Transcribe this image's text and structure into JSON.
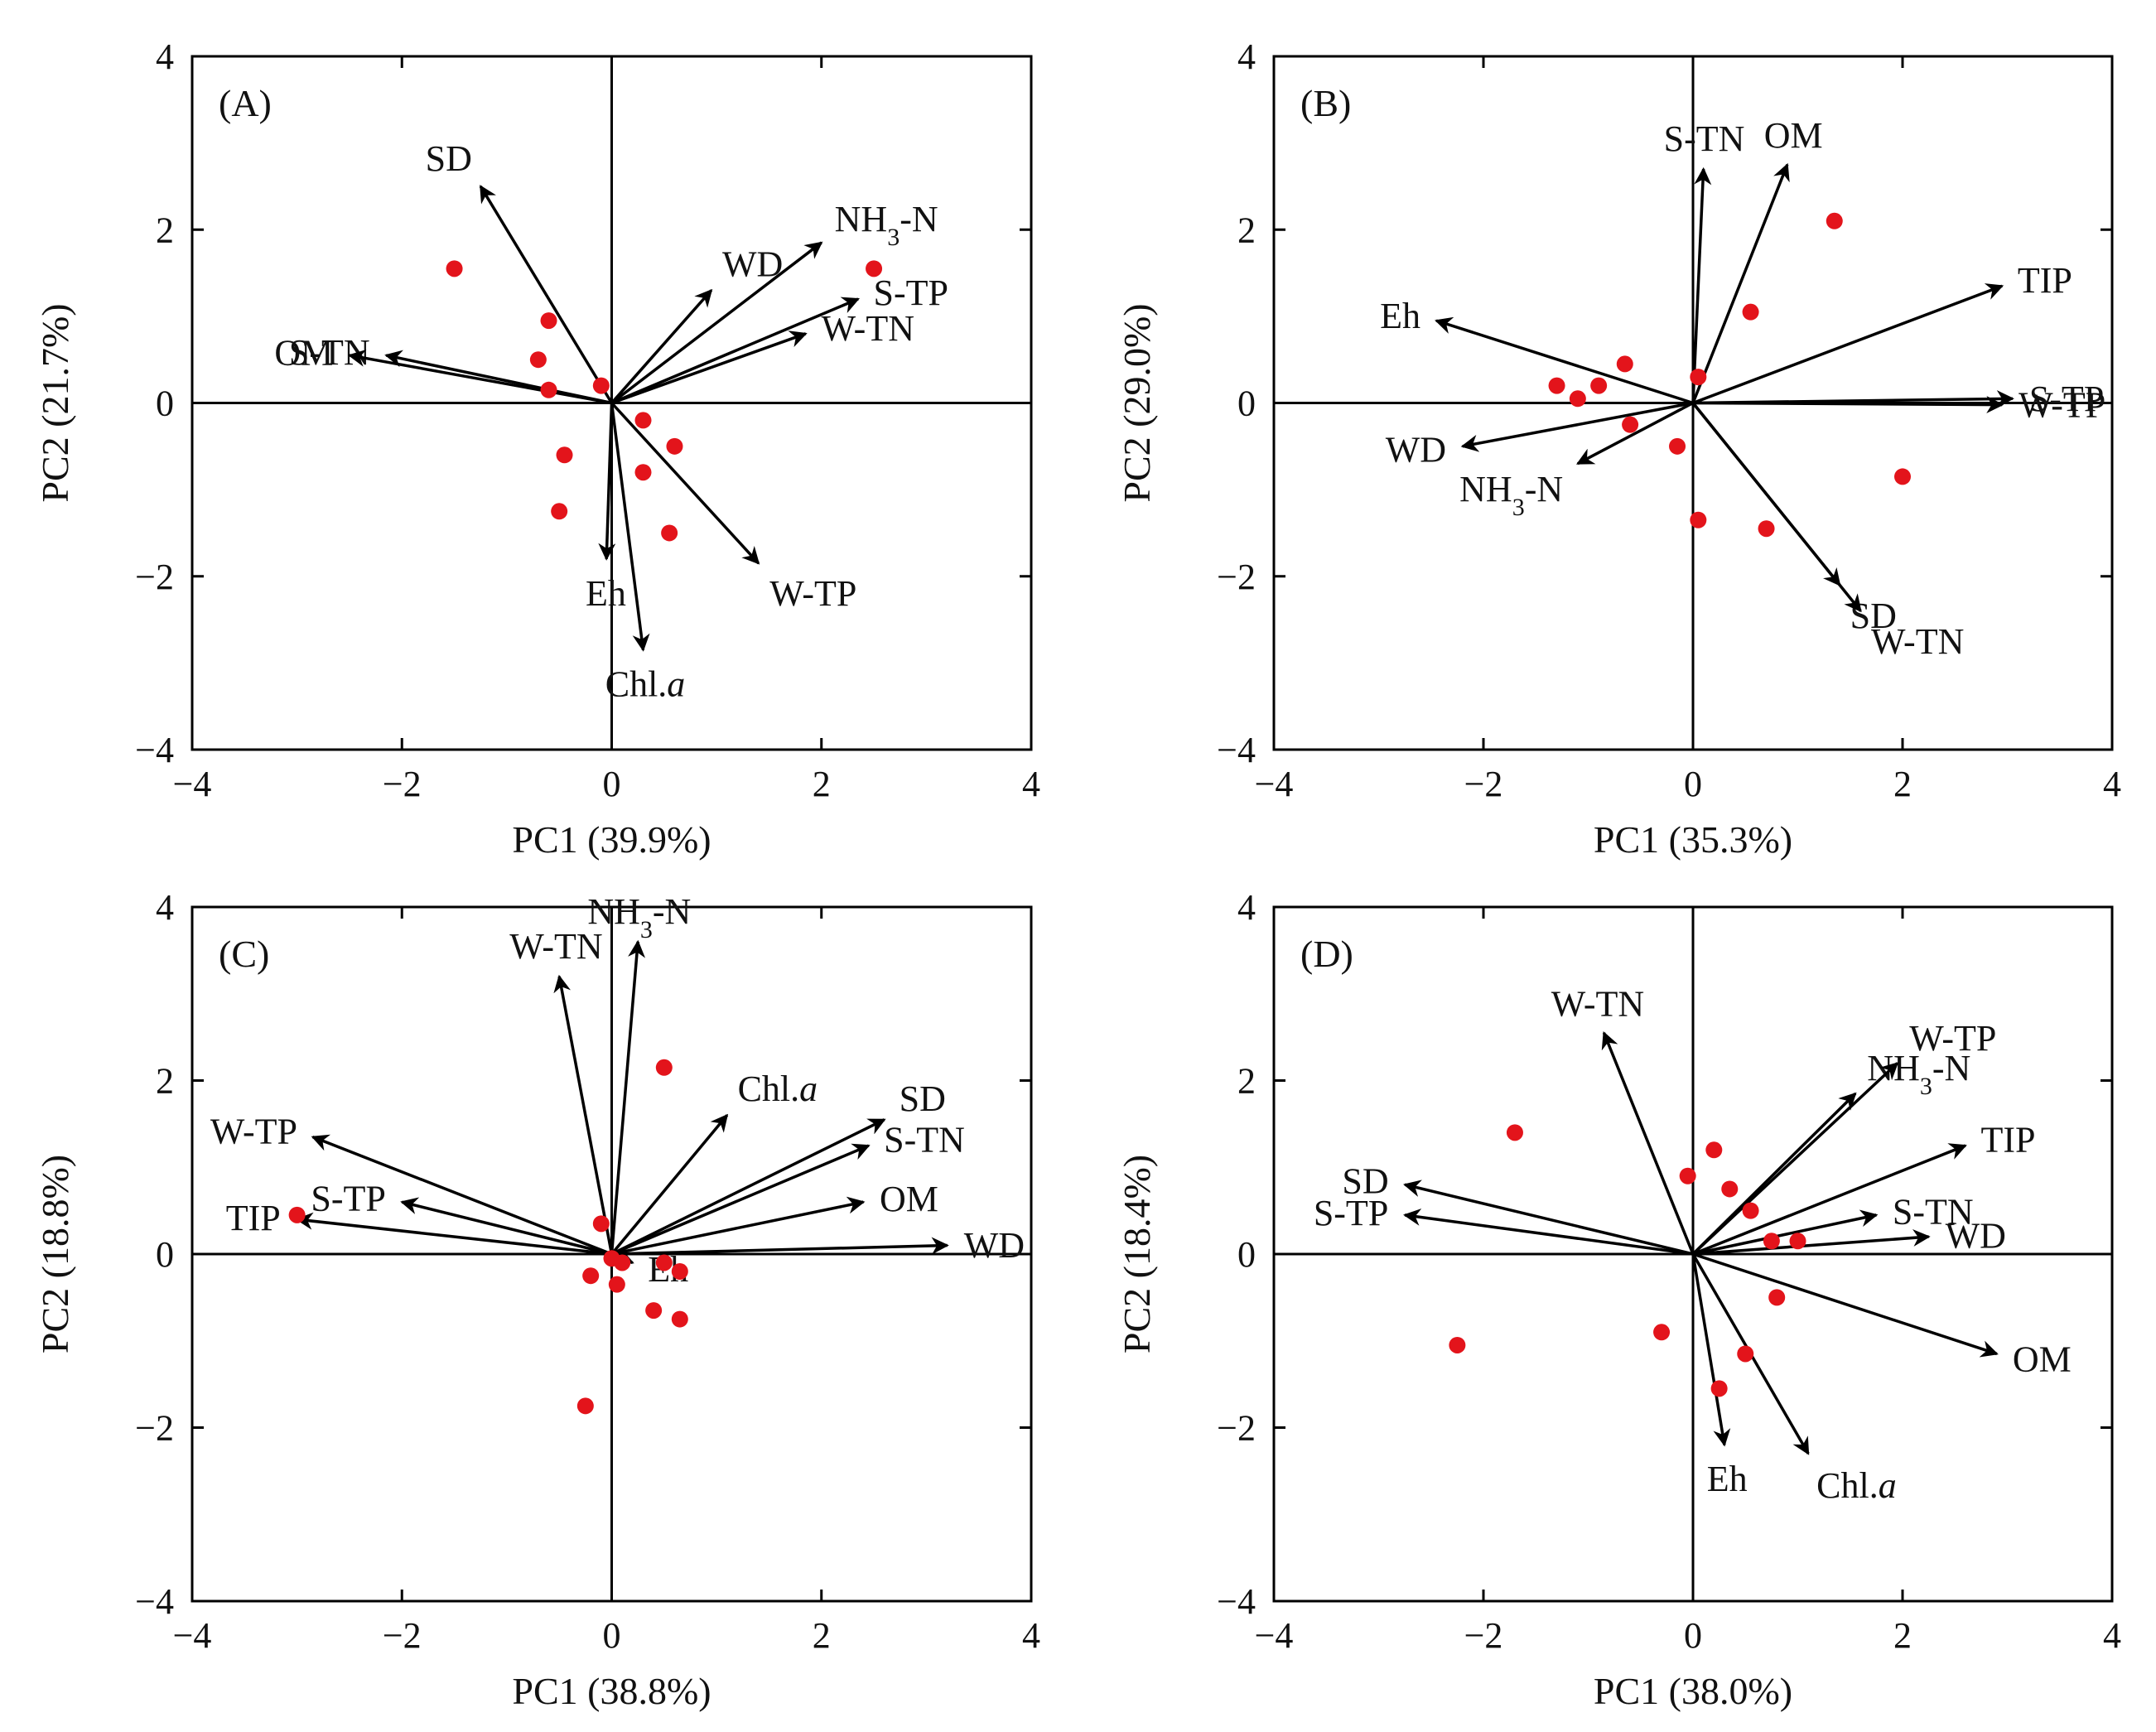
{
  "colors": {
    "points": "#e3141b",
    "arrows": "#000000",
    "background": "#ffffff"
  },
  "chart_data": [
    {
      "type": "scatter",
      "panel": "(A)",
      "xlabel": "PC1 (39.9%)",
      "ylabel": "PC2 (21.7%)",
      "xlim": [
        -4,
        4
      ],
      "ylim": [
        -4,
        4
      ],
      "xticks": [
        "−4",
        "−2",
        "0",
        "2",
        "4"
      ],
      "yticks": [
        "−4",
        "−2",
        "0",
        "2",
        "4"
      ],
      "vectors": [
        {
          "label": "SD",
          "x": -1.25,
          "y": 2.5
        },
        {
          "label": "NH3-N",
          "x": 2.0,
          "y": 1.85
        },
        {
          "label": "WD",
          "x": 0.95,
          "y": 1.3
        },
        {
          "label": "S-TP",
          "x": 2.35,
          "y": 1.2
        },
        {
          "label": "W-TN",
          "x": 1.85,
          "y": 0.8
        },
        {
          "label": "S-TN",
          "x": -2.15,
          "y": 0.55
        },
        {
          "label": "OM",
          "x": -2.5,
          "y": 0.55
        },
        {
          "label": "Eh",
          "x": -0.05,
          "y": -1.8
        },
        {
          "label": "Chl.a",
          "x": 0.3,
          "y": -2.85
        },
        {
          "label": "W-TP",
          "x": 1.4,
          "y": -1.85
        }
      ],
      "points": [
        {
          "x": -1.5,
          "y": 1.55
        },
        {
          "x": -0.6,
          "y": 0.95
        },
        {
          "x": -0.7,
          "y": 0.5
        },
        {
          "x": -0.6,
          "y": 0.15
        },
        {
          "x": -0.1,
          "y": 0.2
        },
        {
          "x": 2.5,
          "y": 1.55
        },
        {
          "x": 0.3,
          "y": -0.2
        },
        {
          "x": 0.6,
          "y": -0.5
        },
        {
          "x": -0.45,
          "y": -0.6
        },
        {
          "x": 0.3,
          "y": -0.8
        },
        {
          "x": -0.5,
          "y": -1.25
        },
        {
          "x": 0.55,
          "y": -1.5
        }
      ]
    },
    {
      "type": "scatter",
      "panel": "(B)",
      "xlabel": "PC1 (35.3%)",
      "ylabel": "PC2 (29.0%)",
      "xlim": [
        -4,
        4
      ],
      "ylim": [
        -4,
        4
      ],
      "xticks": [
        "−4",
        "−2",
        "0",
        "2",
        "4"
      ],
      "yticks": [
        "−4",
        "−2",
        "0",
        "2",
        "4"
      ],
      "vectors": [
        {
          "label": "S-TN",
          "x": 0.1,
          "y": 2.7
        },
        {
          "label": "OM",
          "x": 0.9,
          "y": 2.75
        },
        {
          "label": "TIP",
          "x": 2.95,
          "y": 1.35
        },
        {
          "label": "Eh",
          "x": -2.45,
          "y": 0.95
        },
        {
          "label": "S-TP",
          "x": 3.05,
          "y": 0.05
        },
        {
          "label": "W-TP",
          "x": 2.95,
          "y": -0.02
        },
        {
          "label": "WD",
          "x": -2.2,
          "y": -0.5
        },
        {
          "label": "NH3-N",
          "x": -1.1,
          "y": -0.7
        },
        {
          "label": "SD",
          "x": 1.4,
          "y": -2.1
        },
        {
          "label": "W-TN",
          "x": 1.6,
          "y": -2.4
        }
      ],
      "points": [
        {
          "x": 1.35,
          "y": 2.1
        },
        {
          "x": 0.55,
          "y": 1.05
        },
        {
          "x": -0.65,
          "y": 0.45
        },
        {
          "x": 0.05,
          "y": 0.3
        },
        {
          "x": -1.3,
          "y": 0.2
        },
        {
          "x": -0.9,
          "y": 0.2
        },
        {
          "x": -1.1,
          "y": 0.05
        },
        {
          "x": -0.6,
          "y": -0.25
        },
        {
          "x": -0.15,
          "y": -0.5
        },
        {
          "x": 2.0,
          "y": -0.85
        },
        {
          "x": 0.05,
          "y": -1.35
        },
        {
          "x": 0.7,
          "y": -1.45
        }
      ]
    },
    {
      "type": "scatter",
      "panel": "(C)",
      "xlabel": "PC1 (38.8%)",
      "ylabel": "PC2 (18.8%)",
      "xlim": [
        -4,
        4
      ],
      "ylim": [
        -4,
        4
      ],
      "xticks": [
        "−4",
        "−2",
        "0",
        "2",
        "4"
      ],
      "yticks": [
        "−4",
        "−2",
        "0",
        "2",
        "4"
      ],
      "vectors": [
        {
          "label": "W-TN",
          "x": -0.5,
          "y": 3.2
        },
        {
          "label": "NH3-N",
          "x": 0.25,
          "y": 3.6
        },
        {
          "label": "Chl.a",
          "x": 1.1,
          "y": 1.6
        },
        {
          "label": "SD",
          "x": 2.6,
          "y": 1.55
        },
        {
          "label": "S-TN",
          "x": 2.45,
          "y": 1.25
        },
        {
          "label": "OM",
          "x": 2.4,
          "y": 0.6
        },
        {
          "label": "WD",
          "x": 3.2,
          "y": 0.1
        },
        {
          "label": "W-TP",
          "x": -2.85,
          "y": 1.35
        },
        {
          "label": "S-TP",
          "x": -2.0,
          "y": 0.6
        },
        {
          "label": "TIP",
          "x": -3.0,
          "y": 0.4
        },
        {
          "label": "Eh",
          "x": 0.2,
          "y": -0.1
        }
      ],
      "points": [
        {
          "x": 0.5,
          "y": 2.15
        },
        {
          "x": -3.0,
          "y": 0.45
        },
        {
          "x": -0.1,
          "y": 0.35
        },
        {
          "x": 0.0,
          "y": -0.05
        },
        {
          "x": 0.1,
          "y": -0.1
        },
        {
          "x": 0.5,
          "y": -0.1
        },
        {
          "x": 0.65,
          "y": -0.2
        },
        {
          "x": -0.2,
          "y": -0.25
        },
        {
          "x": 0.05,
          "y": -0.35
        },
        {
          "x": 0.4,
          "y": -0.65
        },
        {
          "x": 0.65,
          "y": -0.75
        },
        {
          "x": -0.25,
          "y": -1.75
        }
      ]
    },
    {
      "type": "scatter",
      "panel": "(D)",
      "xlabel": "PC1 (38.0%)",
      "ylabel": "PC2 (18.4%)",
      "xlim": [
        -4,
        4
      ],
      "ylim": [
        -4,
        4
      ],
      "xticks": [
        "−4",
        "−2",
        "0",
        "2",
        "4"
      ],
      "yticks": [
        "−4",
        "−2",
        "0",
        "2",
        "4"
      ],
      "vectors": [
        {
          "label": "W-TN",
          "x": -0.85,
          "y": 2.55
        },
        {
          "label": "NH3-N",
          "x": 1.55,
          "y": 1.85
        },
        {
          "label": "W-TP",
          "x": 1.95,
          "y": 2.2
        },
        {
          "label": "TIP",
          "x": 2.6,
          "y": 1.25
        },
        {
          "label": "SD",
          "x": -2.75,
          "y": 0.8
        },
        {
          "label": "S-TP",
          "x": -2.75,
          "y": 0.45
        },
        {
          "label": "S-TN",
          "x": 1.75,
          "y": 0.45
        },
        {
          "label": "WD",
          "x": 2.25,
          "y": 0.2
        },
        {
          "label": "OM",
          "x": 2.9,
          "y": -1.15
        },
        {
          "label": "Eh",
          "x": 0.3,
          "y": -2.2
        },
        {
          "label": "Chl.a",
          "x": 1.1,
          "y": -2.3
        }
      ],
      "points": [
        {
          "x": -1.7,
          "y": 1.4
        },
        {
          "x": 0.2,
          "y": 1.2
        },
        {
          "x": -0.05,
          "y": 0.9
        },
        {
          "x": 0.35,
          "y": 0.75
        },
        {
          "x": 0.55,
          "y": 0.5
        },
        {
          "x": 0.75,
          "y": 0.15
        },
        {
          "x": 1.0,
          "y": 0.15
        },
        {
          "x": 0.8,
          "y": -0.5
        },
        {
          "x": -0.3,
          "y": -0.9
        },
        {
          "x": -2.25,
          "y": -1.05
        },
        {
          "x": 0.5,
          "y": -1.15
        },
        {
          "x": 0.25,
          "y": -1.55
        }
      ]
    }
  ]
}
